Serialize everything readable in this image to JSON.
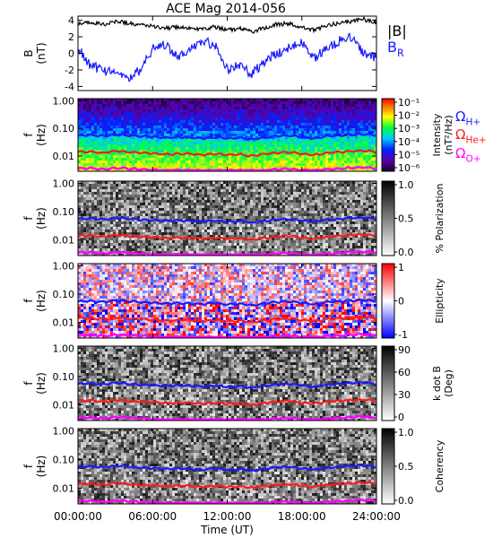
{
  "title": "ACE Mag 2014-056",
  "chart_data": [
    {
      "panel": "field",
      "type": "line",
      "ylabel": "B",
      "yunit": "(nT)",
      "ylim": [
        -4.5,
        4.5
      ],
      "yticks": [
        "4",
        "2",
        "0",
        "-2",
        "-4"
      ],
      "ytick_values": [
        4,
        2,
        0,
        -2,
        -4
      ],
      "x_hours": [
        0,
        1,
        2,
        3,
        4,
        5,
        6,
        7,
        8,
        9,
        10,
        11,
        12,
        13,
        14,
        15,
        16,
        17,
        18,
        19,
        20,
        21,
        22,
        23,
        24
      ],
      "series": [
        {
          "name": "|B|",
          "name_parts": [
            "|B|",
            ""
          ],
          "color": "#000000",
          "values": [
            3.6,
            3.8,
            3.5,
            3.9,
            3.7,
            3.4,
            3.3,
            3.0,
            3.2,
            3.1,
            2.9,
            3.2,
            2.8,
            3.0,
            2.6,
            3.1,
            3.5,
            3.6,
            3.2,
            2.8,
            3.4,
            3.6,
            3.9,
            4.1,
            3.7
          ]
        },
        {
          "name": "BR",
          "name_parts": [
            "B",
            "R"
          ],
          "color": "#1a1aff",
          "values": [
            0.5,
            -1.5,
            -2.0,
            -2.5,
            -3.0,
            -2.0,
            0.5,
            1.0,
            -0.5,
            0.5,
            1.5,
            1.0,
            -2.0,
            -1.5,
            -2.5,
            -1.0,
            0.0,
            0.8,
            1.2,
            -0.5,
            0.5,
            1.5,
            2.0,
            0.0,
            -0.5
          ]
        }
      ]
    },
    {
      "panel": "intensity",
      "type": "heatmap",
      "ylabel": "f",
      "yunit": "(Hz)",
      "yscale": "log",
      "ylim": [
        0.0028,
        1.2
      ],
      "yticks": [
        "1.00",
        "0.10",
        "0.01"
      ],
      "ytick_values": [
        1.0,
        0.1,
        0.01
      ],
      "colorbar": {
        "label": "Intensity",
        "unit": "(nT²/Hz)",
        "ticks": [
          "10⁻¹",
          "10⁻²",
          "10⁻³",
          "10⁻⁴",
          "10⁻⁵",
          "10⁻⁶"
        ],
        "range": [
          1e-06,
          0.1
        ],
        "colormap": "rainbow"
      },
      "legend": [
        {
          "name": "ΩH+",
          "name_parts": [
            "Ω",
            "H+"
          ],
          "color": "#1a1aff"
        },
        {
          "name": "ΩHe+",
          "name_parts": [
            "Ω",
            "He+"
          ],
          "color": "#ff1a1a"
        },
        {
          "name": "ΩO+",
          "name_parts": [
            "Ω",
            "O+"
          ],
          "color": "#ff00ff"
        }
      ]
    },
    {
      "panel": "polarization",
      "type": "heatmap",
      "ylabel": "f",
      "yunit": "(Hz)",
      "yscale": "log",
      "ylim": [
        0.0028,
        1.2
      ],
      "yticks": [
        "1.00",
        "0.10",
        "0.01"
      ],
      "ytick_values": [
        1.0,
        0.1,
        0.01
      ],
      "colorbar": {
        "label": "% Polarization",
        "unit": "",
        "ticks": [
          "1.0",
          "0.5",
          "0.0"
        ],
        "range": [
          0,
          1
        ],
        "colormap": "gray"
      }
    },
    {
      "panel": "ellipticity",
      "type": "heatmap",
      "ylabel": "f",
      "yunit": "(Hz)",
      "yscale": "log",
      "ylim": [
        0.0028,
        1.2
      ],
      "yticks": [
        "1.00",
        "0.10",
        "0.01"
      ],
      "ytick_values": [
        1.0,
        0.1,
        0.01
      ],
      "colorbar": {
        "label": "Ellipticity",
        "unit": "",
        "ticks": [
          "1",
          "0",
          "-1"
        ],
        "range": [
          -1,
          1
        ],
        "colormap": "blue-white-red"
      }
    },
    {
      "panel": "kdotb",
      "type": "heatmap",
      "ylabel": "f",
      "yunit": "(Hz)",
      "yscale": "log",
      "ylim": [
        0.0028,
        1.2
      ],
      "yticks": [
        "1.00",
        "0.10",
        "0.01"
      ],
      "ytick_values": [
        1.0,
        0.1,
        0.01
      ],
      "colorbar": {
        "label": "k dot B",
        "unit": "(Deg)",
        "ticks": [
          "90",
          "60",
          "30",
          "0"
        ],
        "range": [
          0,
          90
        ],
        "colormap": "gray"
      }
    },
    {
      "panel": "coherency",
      "type": "heatmap",
      "ylabel": "f",
      "yunit": "(Hz)",
      "yscale": "log",
      "ylim": [
        0.0028,
        1.2
      ],
      "yticks": [
        "1.00",
        "0.10",
        "0.01"
      ],
      "ytick_values": [
        1.0,
        0.1,
        0.01
      ],
      "colorbar": {
        "label": "Coherency",
        "unit": "",
        "ticks": [
          "1.0",
          "0.5",
          "0.0"
        ],
        "range": [
          0,
          1
        ],
        "colormap": "gray"
      }
    }
  ],
  "gyrofrequencies": {
    "x_hours": [
      0,
      1,
      2,
      3,
      4,
      5,
      6,
      7,
      8,
      9,
      10,
      11,
      12,
      13,
      14,
      15,
      16,
      17,
      18,
      19,
      20,
      21,
      22,
      23,
      24
    ],
    "H+": [
      0.055,
      0.058,
      0.053,
      0.06,
      0.056,
      0.052,
      0.05,
      0.046,
      0.049,
      0.047,
      0.044,
      0.049,
      0.043,
      0.046,
      0.04,
      0.047,
      0.053,
      0.055,
      0.049,
      0.043,
      0.052,
      0.055,
      0.06,
      0.062,
      0.056
    ],
    "He+": [
      0.014,
      0.0145,
      0.013,
      0.015,
      0.014,
      0.013,
      0.0125,
      0.0115,
      0.012,
      0.012,
      0.011,
      0.012,
      0.011,
      0.0115,
      0.01,
      0.012,
      0.013,
      0.014,
      0.012,
      0.011,
      0.013,
      0.014,
      0.015,
      0.0155,
      0.014
    ],
    "O+": [
      0.0035,
      0.0036,
      0.0033,
      0.0037,
      0.0035,
      0.0033,
      0.0031,
      0.0029,
      0.0031,
      0.003,
      0.0029,
      0.0031,
      0.0029,
      0.003,
      0.0029,
      0.003,
      0.0033,
      0.0034,
      0.0031,
      0.0029,
      0.0033,
      0.0034,
      0.0037,
      0.0039,
      0.0035
    ]
  },
  "x_axis": {
    "label": "Time (UT)",
    "range_hours": [
      0,
      24
    ],
    "ticks": [
      "00:00:00",
      "06:00:00",
      "12:00:00",
      "18:00:00",
      "24:00:00"
    ],
    "tick_hours": [
      0,
      6,
      12,
      18,
      24
    ]
  },
  "colors": {
    "H+": "#1a1aff",
    "He+": "#ff1a1a",
    "O+": "#ff00ff",
    "frame": "#000000"
  }
}
